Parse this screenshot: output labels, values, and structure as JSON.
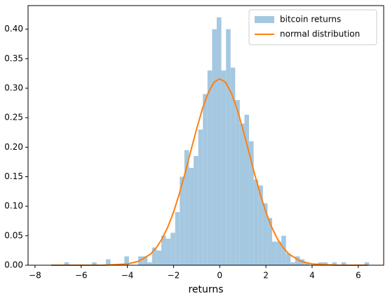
{
  "chart_data": {
    "type": "histogram",
    "x_label": "returns",
    "xlim": [
      -8.3,
      7.1
    ],
    "ylim": [
      0,
      0.44
    ],
    "xticks": [
      {
        "value": -8,
        "label": "−8"
      },
      {
        "value": -6,
        "label": "−6"
      },
      {
        "value": -4,
        "label": "−4"
      },
      {
        "value": -2,
        "label": "−2"
      },
      0,
      2,
      4,
      6
    ],
    "yticks": [
      {
        "value": 0,
        "label": "0.00"
      },
      {
        "value": 0.05,
        "label": "0.05"
      },
      {
        "value": 0.1,
        "label": "0.10"
      },
      {
        "value": 0.15,
        "label": "0.15"
      },
      {
        "value": 0.2,
        "label": "0.20"
      },
      {
        "value": 0.25,
        "label": "0.25"
      },
      {
        "value": 0.3,
        "label": "0.30"
      },
      {
        "value": 0.35,
        "label": "0.35"
      },
      {
        "value": 0.4,
        "label": "0.40"
      }
    ],
    "legend": "upper right",
    "series": [
      {
        "name": "bitcoin returns",
        "type": "histogram",
        "color": "#a5c8e1",
        "bins": [
          -7.33,
          -7.13,
          -6.93,
          -6.73,
          -6.53,
          -6.33,
          -6.13,
          -5.93,
          -5.73,
          -5.53,
          -5.33,
          -5.13,
          -4.93,
          -4.73,
          -4.53,
          -4.33,
          -4.13,
          -3.93,
          -3.73,
          -3.53,
          -3.33,
          -3.13,
          -2.93,
          -2.73,
          -2.53,
          -2.33,
          -2.13,
          -1.93,
          -1.73,
          -1.53,
          -1.33,
          -1.13,
          -0.93,
          -0.73,
          -0.53,
          -0.33,
          -0.13,
          0.07,
          0.27,
          0.47,
          0.67,
          0.87,
          1.07,
          1.27,
          1.47,
          1.67,
          1.87,
          2.07,
          2.27,
          2.47,
          2.67,
          2.87,
          3.07,
          3.27,
          3.47,
          3.67,
          3.87,
          4.07,
          4.27,
          4.47,
          4.67,
          4.87,
          5.07,
          5.27,
          5.47,
          5.67,
          5.87,
          6.07,
          6.27,
          6.47
        ],
        "values": [
          0,
          0,
          0,
          0.005,
          0,
          0,
          0,
          0,
          0,
          0.005,
          0,
          0,
          0.01,
          0,
          0,
          0,
          0.015,
          0,
          0,
          0.015,
          0.015,
          0.005,
          0.03,
          0.025,
          0.05,
          0.045,
          0.055,
          0.09,
          0.15,
          0.195,
          0.165,
          0.185,
          0.23,
          0.29,
          0.33,
          0.4,
          0.42,
          0.33,
          0.4,
          0.335,
          0.28,
          0.24,
          0.255,
          0.21,
          0.145,
          0.135,
          0.105,
          0.08,
          0.04,
          0.04,
          0.05,
          0.02,
          0.005,
          0.015,
          0.01,
          0.005,
          0,
          0,
          0.005,
          0.005,
          0,
          0.005,
          0,
          0.005,
          0,
          0,
          0,
          0,
          0.005
        ]
      },
      {
        "name": "normal distribution",
        "type": "line",
        "color": "#ff7f0e",
        "x": [
          -7.3,
          -5,
          -4,
          -3.5,
          -3,
          -2.75,
          -2.5,
          -2.25,
          -2,
          -1.75,
          -1.5,
          -1.25,
          -1,
          -0.75,
          -0.5,
          -0.25,
          0,
          0.25,
          0.5,
          0.75,
          1,
          1.25,
          1.5,
          1.75,
          2,
          2.25,
          2.5,
          2.75,
          3,
          3.5,
          4,
          5,
          6.4
        ],
        "values": [
          0,
          0.0001,
          0.0021,
          0.0068,
          0.0187,
          0.0295,
          0.0444,
          0.0645,
          0.09,
          0.121,
          0.156,
          0.194,
          0.231,
          0.265,
          0.292,
          0.31,
          0.316,
          0.31,
          0.292,
          0.265,
          0.231,
          0.194,
          0.156,
          0.121,
          0.09,
          0.0645,
          0.0444,
          0.0295,
          0.0187,
          0.0068,
          0.0021,
          0.0001,
          0
        ]
      }
    ]
  }
}
